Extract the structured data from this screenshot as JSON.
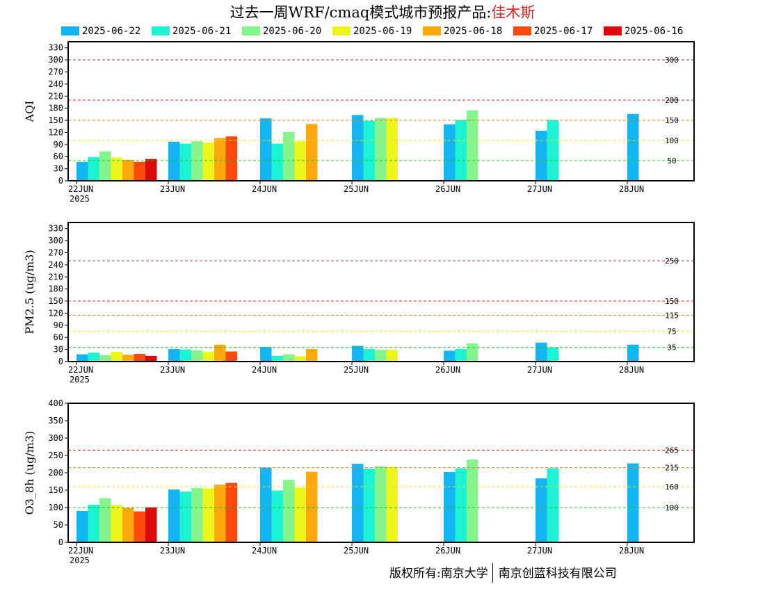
{
  "header": {
    "title_prefix": "过去一周WRF/cmaq模式城市预报产品:",
    "city": "佳木斯",
    "city_color": "#e02020"
  },
  "legend": [
    {
      "label": "2025-06-22",
      "color": "#13b6f2"
    },
    {
      "label": "2025-06-21",
      "color": "#1df2d2"
    },
    {
      "label": "2025-06-20",
      "color": "#84f58c"
    },
    {
      "label": "2025-06-19",
      "color": "#ecf51c"
    },
    {
      "label": "2025-06-18",
      "color": "#fda90d"
    },
    {
      "label": "2025-06-17",
      "color": "#fc4a0d"
    },
    {
      "label": "2025-06-16",
      "color": "#dc0b0b"
    }
  ],
  "footer": {
    "left": "版权所有:南京大学",
    "right": "南京创蓝科技有限公司"
  },
  "chart_data": [
    {
      "type": "bar",
      "ylabel": "AQI",
      "ylim": [
        0,
        345
      ],
      "yticks": [
        0,
        30,
        60,
        90,
        120,
        150,
        180,
        210,
        240,
        270,
        300,
        330
      ],
      "categories": [
        "22JUN",
        "23JUN",
        "24JUN",
        "25JUN",
        "26JUN",
        "27JUN",
        "28JUN"
      ],
      "first_category_sublabel": "2025",
      "thresholds": [
        {
          "value": 300,
          "label": "300",
          "color": "#b0206a"
        },
        {
          "value": 200,
          "label": "200",
          "color": "#e02020"
        },
        {
          "value": 150,
          "label": "150",
          "color": "#f08020"
        },
        {
          "value": 100,
          "label": "100",
          "color": "#e8e020"
        },
        {
          "value": 50,
          "label": "50",
          "color": "#20c020"
        }
      ],
      "series": [
        {
          "name": "2025-06-22",
          "values": [
            47,
            97,
            155,
            163,
            140,
            124,
            166
          ]
        },
        {
          "name": "2025-06-21",
          "values": [
            59,
            92,
            92,
            149,
            151,
            151,
            null
          ]
        },
        {
          "name": "2025-06-20",
          "values": [
            73,
            98,
            121,
            156,
            175,
            null,
            null
          ]
        },
        {
          "name": "2025-06-19",
          "values": [
            58,
            95,
            98,
            156,
            null,
            null,
            null
          ]
        },
        {
          "name": "2025-06-18",
          "values": [
            52,
            106,
            141,
            null,
            null,
            null,
            null
          ]
        },
        {
          "name": "2025-06-17",
          "values": [
            47,
            110,
            null,
            null,
            null,
            null,
            null
          ]
        },
        {
          "name": "2025-06-16",
          "values": [
            54,
            null,
            null,
            null,
            null,
            null,
            null
          ]
        }
      ]
    },
    {
      "type": "bar",
      "ylabel": "PM2.5 (ug/m3)",
      "ylim": [
        0,
        345
      ],
      "yticks": [
        0,
        30,
        60,
        90,
        120,
        150,
        180,
        210,
        240,
        270,
        300,
        330
      ],
      "categories": [
        "22JUN",
        "23JUN",
        "24JUN",
        "25JUN",
        "26JUN",
        "27JUN",
        "28JUN"
      ],
      "first_category_sublabel": "2025",
      "thresholds": [
        {
          "value": 250,
          "label": "250",
          "color": "#b0206a"
        },
        {
          "value": 150,
          "label": "150",
          "color": "#e02020"
        },
        {
          "value": 115,
          "label": "115",
          "color": "#f08020"
        },
        {
          "value": 75,
          "label": "75",
          "color": "#e8e020"
        },
        {
          "value": 35,
          "label": "35",
          "color": "#20c020"
        }
      ],
      "series": [
        {
          "name": "2025-06-22",
          "values": [
            18,
            31,
            36,
            39,
            27,
            47,
            42
          ]
        },
        {
          "name": "2025-06-21",
          "values": [
            22,
            30,
            14,
            31,
            31,
            35,
            null
          ]
        },
        {
          "name": "2025-06-20",
          "values": [
            16,
            28,
            18,
            29,
            45,
            null,
            null
          ]
        },
        {
          "name": "2025-06-19",
          "values": [
            24,
            24,
            13,
            29,
            null,
            null,
            null
          ]
        },
        {
          "name": "2025-06-18",
          "values": [
            17,
            42,
            31,
            null,
            null,
            null,
            null
          ]
        },
        {
          "name": "2025-06-17",
          "values": [
            19,
            25,
            null,
            null,
            null,
            null,
            null
          ]
        },
        {
          "name": "2025-06-16",
          "values": [
            14,
            null,
            null,
            null,
            null,
            null,
            null
          ]
        }
      ]
    },
    {
      "type": "bar",
      "ylabel": "O3_8h (ug/m3)",
      "ylim": [
        0,
        400
      ],
      "yticks": [
        0,
        50,
        100,
        150,
        200,
        250,
        300,
        350,
        400
      ],
      "categories": [
        "22JUN",
        "23JUN",
        "24JUN",
        "25JUN",
        "26JUN",
        "27JUN",
        "28JUN"
      ],
      "first_category_sublabel": "2025",
      "thresholds": [
        {
          "value": 265,
          "label": "265",
          "color": "#e02020"
        },
        {
          "value": 215,
          "label": "215",
          "color": "#f08020"
        },
        {
          "value": 160,
          "label": "160",
          "color": "#e8e020"
        },
        {
          "value": 100,
          "label": "100",
          "color": "#20c020"
        }
      ],
      "series": [
        {
          "name": "2025-06-22",
          "values": [
            90,
            152,
            215,
            226,
            202,
            184,
            227
          ]
        },
        {
          "name": "2025-06-21",
          "values": [
            108,
            146,
            149,
            212,
            213,
            213,
            null
          ]
        },
        {
          "name": "2025-06-20",
          "values": [
            127,
            156,
            180,
            219,
            238,
            null,
            null
          ]
        },
        {
          "name": "2025-06-19",
          "values": [
            108,
            155,
            157,
            217,
            null,
            null,
            null
          ]
        },
        {
          "name": "2025-06-18",
          "values": [
            99,
            166,
            203,
            null,
            null,
            null,
            null
          ]
        },
        {
          "name": "2025-06-17",
          "values": [
            89,
            171,
            null,
            null,
            null,
            null,
            null
          ]
        },
        {
          "name": "2025-06-16",
          "values": [
            101,
            null,
            null,
            null,
            null,
            null,
            null
          ]
        }
      ]
    }
  ]
}
